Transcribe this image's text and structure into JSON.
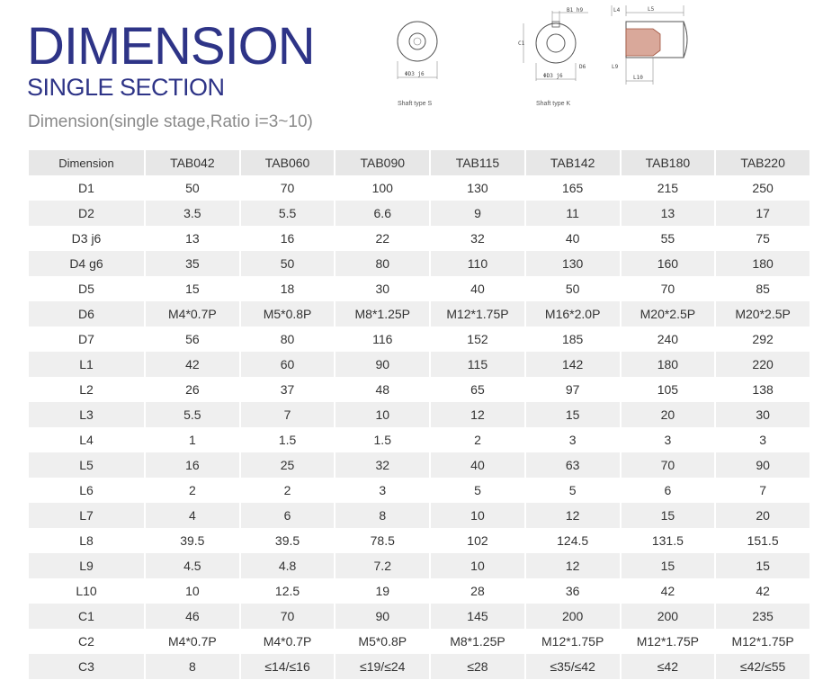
{
  "header": {
    "title": "DIMENSION",
    "subtitle": "SINGLE SECTION",
    "caption": "Dimension(single stage,Ratio i=3~10)"
  },
  "figures": {
    "shaft_s_label": "Shaft type S",
    "shaft_k_label": "Shaft type K",
    "dims": {
      "d3j6": "ΦD3 j6",
      "b1h9": "B1 h9",
      "c1": "C1",
      "d6": "D6",
      "l4": "L4",
      "l5": "L5",
      "l9": "L9",
      "l10": "L10"
    }
  },
  "colors": {
    "title": "#2e3487",
    "header_bg": "#e7e7e7",
    "stripe_bg": "#efefef"
  },
  "table": {
    "columns": [
      "Dimension",
      "TAB042",
      "TAB060",
      "TAB090",
      "TAB115",
      "TAB142",
      "TAB180",
      "TAB220"
    ],
    "rows": [
      [
        "D1",
        "50",
        "70",
        "100",
        "130",
        "165",
        "215",
        "250"
      ],
      [
        "D2",
        "3.5",
        "5.5",
        "6.6",
        "9",
        "11",
        "13",
        "17"
      ],
      [
        "D3 j6",
        "13",
        "16",
        "22",
        "32",
        "40",
        "55",
        "75"
      ],
      [
        "D4 g6",
        "35",
        "50",
        "80",
        "110",
        "130",
        "160",
        "180"
      ],
      [
        "D5",
        "15",
        "18",
        "30",
        "40",
        "50",
        "70",
        "85"
      ],
      [
        "D6",
        "M4*0.7P",
        "M5*0.8P",
        "M8*1.25P",
        "M12*1.75P",
        "M16*2.0P",
        "M20*2.5P",
        "M20*2.5P"
      ],
      [
        "D7",
        "56",
        "80",
        "116",
        "152",
        "185",
        "240",
        "292"
      ],
      [
        "L1",
        "42",
        "60",
        "90",
        "115",
        "142",
        "180",
        "220"
      ],
      [
        "L2",
        "26",
        "37",
        "48",
        "65",
        "97",
        "105",
        "138"
      ],
      [
        "L3",
        "5.5",
        "7",
        "10",
        "12",
        "15",
        "20",
        "30"
      ],
      [
        "L4",
        "1",
        "1.5",
        "1.5",
        "2",
        "3",
        "3",
        "3"
      ],
      [
        "L5",
        "16",
        "25",
        "32",
        "40",
        "63",
        "70",
        "90"
      ],
      [
        "L6",
        "2",
        "2",
        "3",
        "5",
        "5",
        "6",
        "7"
      ],
      [
        "L7",
        "4",
        "6",
        "8",
        "10",
        "12",
        "15",
        "20"
      ],
      [
        "L8",
        "39.5",
        "39.5",
        "78.5",
        "102",
        "124.5",
        "131.5",
        "151.5"
      ],
      [
        "L9",
        "4.5",
        "4.8",
        "7.2",
        "10",
        "12",
        "15",
        "15"
      ],
      [
        "L10",
        "10",
        "12.5",
        "19",
        "28",
        "36",
        "42",
        "42"
      ],
      [
        "C1",
        "46",
        "70",
        "90",
        "145",
        "200",
        "200",
        "235"
      ],
      [
        "C2",
        "M4*0.7P",
        "M4*0.7P",
        "M5*0.8P",
        "M8*1.25P",
        "M12*1.75P",
        "M12*1.75P",
        "M12*1.75P"
      ],
      [
        "C3",
        "8",
        "≤14/≤16",
        "≤19/≤24",
        "≤28",
        "≤35/≤42",
        "≤42",
        "≤42/≤55"
      ]
    ]
  }
}
